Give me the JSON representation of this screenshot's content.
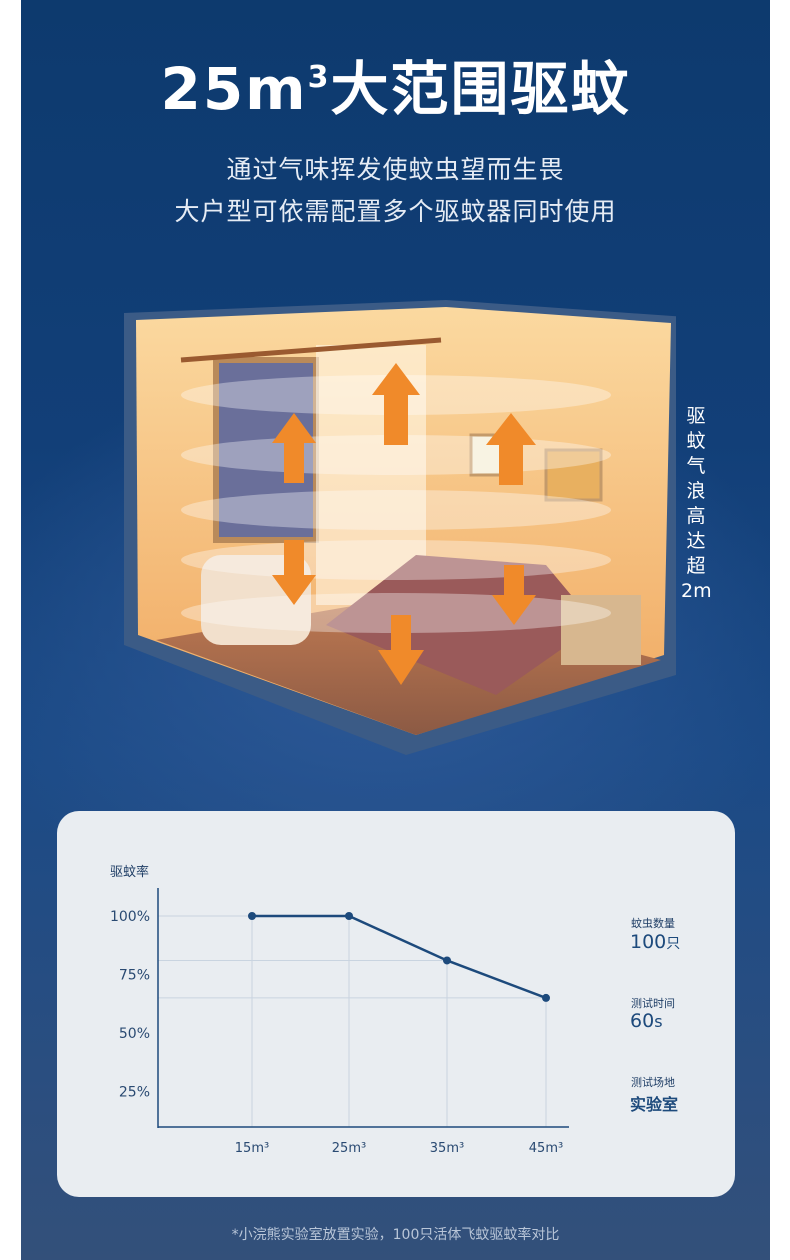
{
  "title": {
    "main": "25m",
    "sup": "3",
    "rest": "大范围驱蚊"
  },
  "subtitle": [
    "通过气味挥发使蚊虫望而生畏",
    "大户型可依需配置多个驱蚊器同时使用"
  ],
  "side_label": [
    "驱",
    "蚊",
    "气",
    "浪",
    "高",
    "达",
    "超",
    "2m"
  ],
  "chart_data": {
    "type": "line",
    "ylabel": "驱蚊率",
    "categories": [
      "15m³",
      "25m³",
      "35m³",
      "45m³"
    ],
    "values": [
      100,
      100,
      81,
      65
    ],
    "yticks": [
      "100%",
      "75%",
      "50%",
      "25%"
    ],
    "ylim": [
      10,
      112
    ],
    "grid": true,
    "color": "#1d4a7c"
  },
  "stats": [
    {
      "label": "蚊虫数量",
      "value": "100",
      "unit": "只"
    },
    {
      "label": "测试时间",
      "value": "60",
      "unit": "s"
    },
    {
      "label": "测试场地",
      "value": "实验室",
      "unit": ""
    }
  ],
  "footnote": "*小浣熊实验室放置实验，100只活体飞蚊驱蚊率对比",
  "colors": {
    "background": "#123f78",
    "card": "#e9edf1",
    "accent": "#1d4a7c",
    "arrow": "#f08a2a"
  }
}
